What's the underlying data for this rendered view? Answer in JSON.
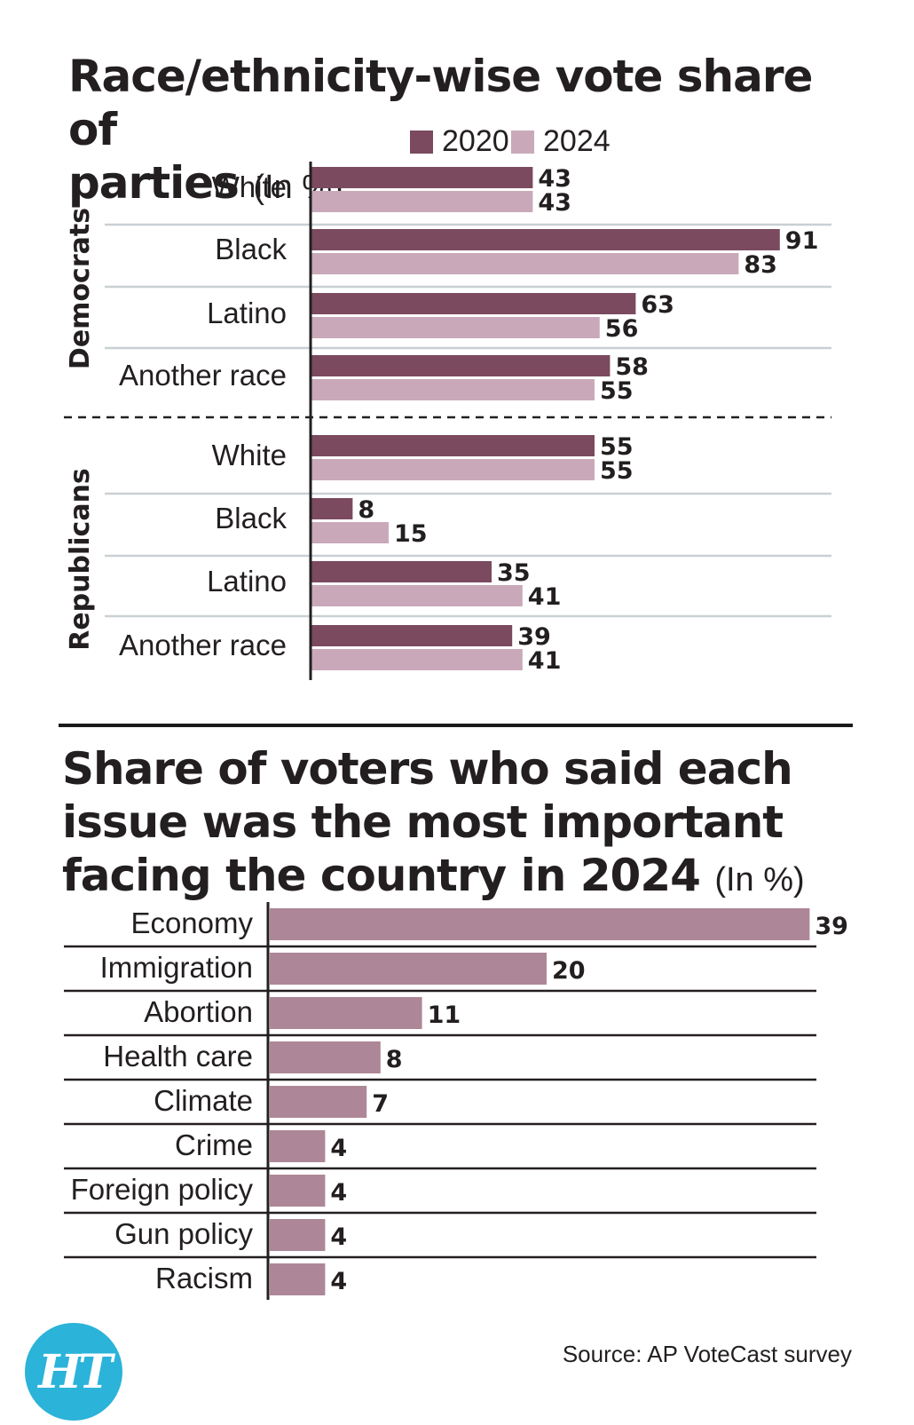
{
  "colors": {
    "c2020": "#7b4a5f",
    "c2024": "#c9a9b9",
    "issue_bar": "#ad8797"
  },
  "chart1": {
    "title": "Race/ethnicity-wise vote share of parties",
    "unit": "(In %)",
    "legend": [
      "2020",
      "2024"
    ]
  },
  "chart2": {
    "title": "Share of voters who said each issue was the most important facing the country in 2024",
    "unit": "(In %)"
  },
  "source": "Source: AP VoteCast survey",
  "logo": "HT",
  "chart_data": [
    {
      "type": "bar",
      "orientation": "horizontal",
      "title": "Race/ethnicity-wise vote share of parties",
      "unit": "(In %)",
      "groups": [
        {
          "name": "Democrats",
          "categories": [
            "White",
            "Black",
            "Latino",
            "Another race"
          ],
          "series": [
            {
              "name": "2020",
              "values": [
                43,
                91,
                63,
                58
              ]
            },
            {
              "name": "2024",
              "values": [
                43,
                83,
                56,
                55
              ]
            }
          ]
        },
        {
          "name": "Republicans",
          "categories": [
            "White",
            "Black",
            "Latino",
            "Another race"
          ],
          "series": [
            {
              "name": "2020",
              "values": [
                55,
                8,
                35,
                39
              ]
            },
            {
              "name": "2024",
              "values": [
                55,
                15,
                41,
                41
              ]
            }
          ]
        }
      ],
      "xlim": [
        0,
        100
      ],
      "legend_position": "top-right"
    },
    {
      "type": "bar",
      "orientation": "horizontal",
      "title": "Share of voters who said each issue was the most important facing the country in 2024",
      "unit": "(In %)",
      "categories": [
        "Economy",
        "Immigration",
        "Abortion",
        "Health care",
        "Climate",
        "Crime",
        "Foreign policy",
        "Gun policy",
        "Racism"
      ],
      "values": [
        39,
        20,
        11,
        8,
        7,
        4,
        4,
        4,
        4
      ],
      "xlim": [
        0,
        40
      ]
    }
  ]
}
